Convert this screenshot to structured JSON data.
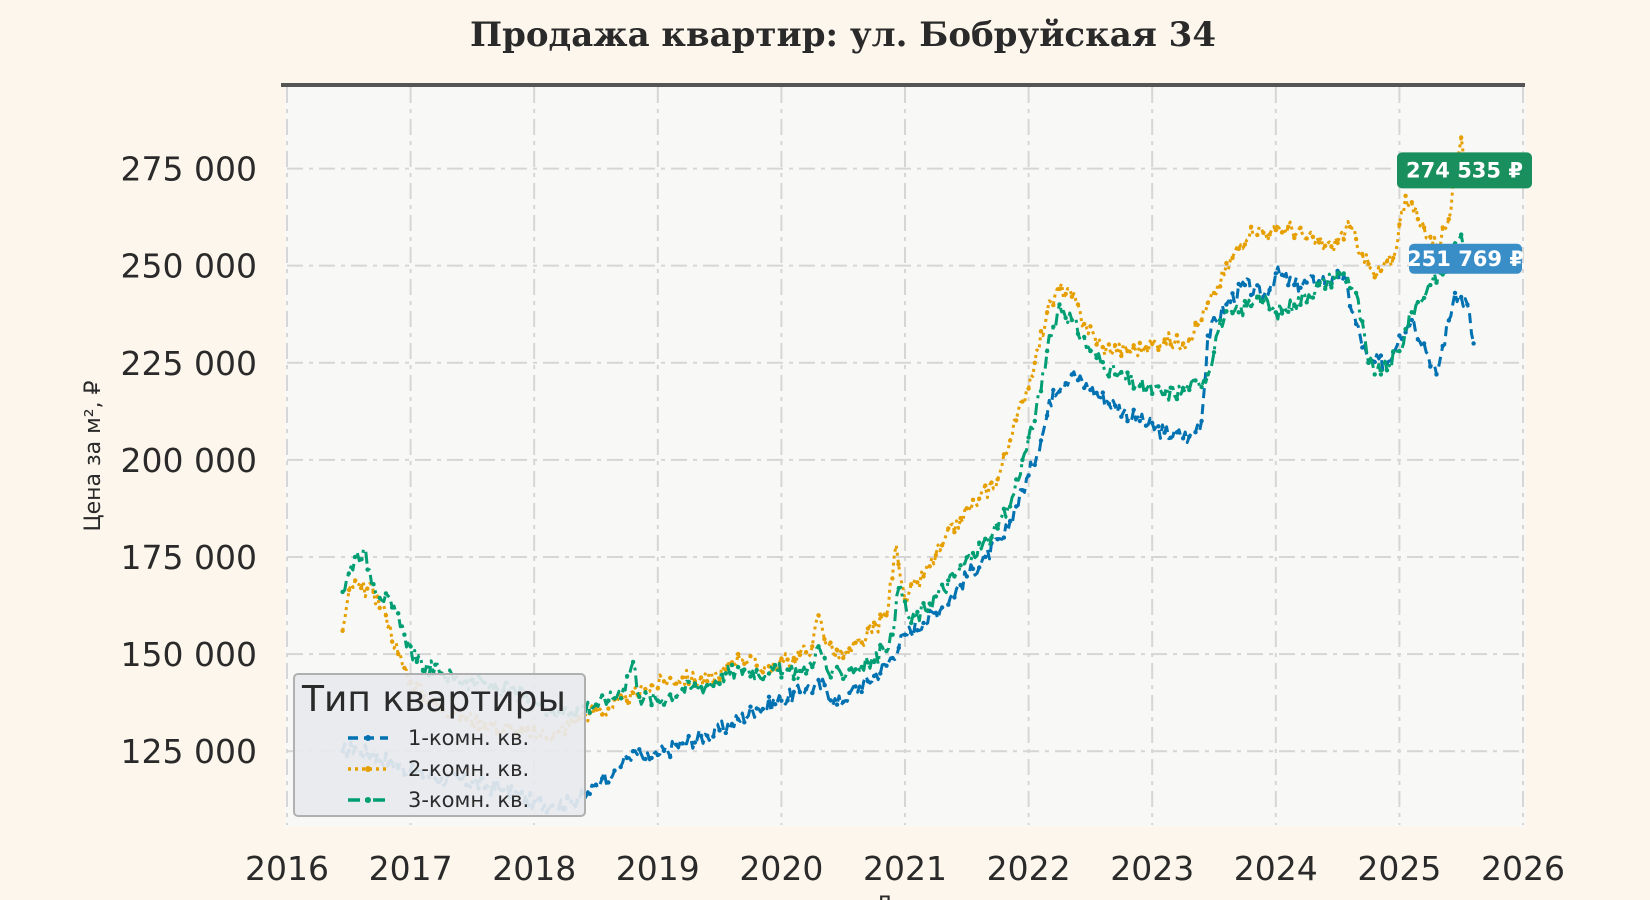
{
  "chart_data": {
    "type": "line",
    "title": "Продажа квартир: ул. Бобруйская 34",
    "xlabel": "Д",
    "ylabel": "Цена за м², ₽",
    "xlim": [
      2016,
      2026
    ],
    "ylim": [
      106000,
      296000
    ],
    "x_ticks": [
      "2016",
      "2017",
      "2018",
      "2019",
      "2020",
      "2021",
      "2022",
      "2023",
      "2024",
      "2025",
      "2026"
    ],
    "y_ticks": [
      "125 000",
      "150 000",
      "175 000",
      "200 000",
      "225 000",
      "250 000",
      "275 000"
    ],
    "grid": true,
    "legend": {
      "title": "Тип квартиры",
      "position": "bottom-left"
    },
    "series": [
      {
        "name": "1-комн. кв.",
        "color": "#0072b2",
        "style": "dashed",
        "points": [
          [
            2016.45,
            125000
          ],
          [
            2016.55,
            126000
          ],
          [
            2016.7,
            124000
          ],
          [
            2016.85,
            122000
          ],
          [
            2017.0,
            120000
          ],
          [
            2017.25,
            118000
          ],
          [
            2017.5,
            117000
          ],
          [
            2017.75,
            115000
          ],
          [
            2018.0,
            112000
          ],
          [
            2018.15,
            111000
          ],
          [
            2018.3,
            112000
          ],
          [
            2018.45,
            114000
          ],
          [
            2018.55,
            118000
          ],
          [
            2018.65,
            120000
          ],
          [
            2018.8,
            125000
          ],
          [
            2018.9,
            123000
          ],
          [
            2019.0,
            124000
          ],
          [
            2019.2,
            127000
          ],
          [
            2019.4,
            129000
          ],
          [
            2019.6,
            132000
          ],
          [
            2019.8,
            136000
          ],
          [
            2020.0,
            138000
          ],
          [
            2020.2,
            141000
          ],
          [
            2020.35,
            142000
          ],
          [
            2020.45,
            137000
          ],
          [
            2020.55,
            140000
          ],
          [
            2020.7,
            143000
          ],
          [
            2020.85,
            147000
          ],
          [
            2021.0,
            155000
          ],
          [
            2021.15,
            158000
          ],
          [
            2021.3,
            162000
          ],
          [
            2021.5,
            170000
          ],
          [
            2021.65,
            175000
          ],
          [
            2021.8,
            180000
          ],
          [
            2021.9,
            188000
          ],
          [
            2022.0,
            196000
          ],
          [
            2022.1,
            205000
          ],
          [
            2022.2,
            218000
          ],
          [
            2022.35,
            222000
          ],
          [
            2022.5,
            218000
          ],
          [
            2022.7,
            214000
          ],
          [
            2022.9,
            210000
          ],
          [
            2023.1,
            207000
          ],
          [
            2023.3,
            206000
          ],
          [
            2023.4,
            210000
          ],
          [
            2023.45,
            232000
          ],
          [
            2023.6,
            240000
          ],
          [
            2023.75,
            245000
          ],
          [
            2023.9,
            242000
          ],
          [
            2024.0,
            248000
          ],
          [
            2024.15,
            245000
          ],
          [
            2024.35,
            246000
          ],
          [
            2024.55,
            247000
          ],
          [
            2024.65,
            235000
          ],
          [
            2024.75,
            225000
          ],
          [
            2024.9,
            225000
          ],
          [
            2025.0,
            232000
          ],
          [
            2025.1,
            236000
          ],
          [
            2025.2,
            230000
          ],
          [
            2025.3,
            222000
          ],
          [
            2025.45,
            243000
          ],
          [
            2025.55,
            240000
          ],
          [
            2025.6,
            230000
          ]
        ]
      },
      {
        "name": "2-комн. кв.",
        "color": "#e69f00",
        "style": "dotted",
        "points": [
          [
            2016.45,
            156000
          ],
          [
            2016.52,
            168000
          ],
          [
            2016.6,
            167000
          ],
          [
            2016.7,
            166000
          ],
          [
            2016.8,
            160000
          ],
          [
            2016.9,
            150000
          ],
          [
            2017.0,
            143000
          ],
          [
            2017.15,
            138000
          ],
          [
            2017.35,
            135000
          ],
          [
            2017.6,
            132000
          ],
          [
            2017.85,
            130000
          ],
          [
            2018.05,
            129000
          ],
          [
            2018.2,
            130000
          ],
          [
            2018.35,
            133000
          ],
          [
            2018.45,
            135000
          ],
          [
            2018.6,
            136000
          ],
          [
            2018.75,
            138000
          ],
          [
            2018.9,
            141000
          ],
          [
            2019.05,
            143000
          ],
          [
            2019.2,
            144000
          ],
          [
            2019.4,
            143000
          ],
          [
            2019.55,
            146000
          ],
          [
            2019.65,
            150000
          ],
          [
            2019.8,
            147000
          ],
          [
            2019.95,
            147000
          ],
          [
            2020.1,
            149000
          ],
          [
            2020.25,
            152000
          ],
          [
            2020.3,
            160000
          ],
          [
            2020.38,
            152000
          ],
          [
            2020.5,
            149000
          ],
          [
            2020.65,
            153000
          ],
          [
            2020.85,
            160000
          ],
          [
            2020.93,
            178000
          ],
          [
            2021.0,
            164000
          ],
          [
            2021.15,
            170000
          ],
          [
            2021.3,
            178000
          ],
          [
            2021.45,
            185000
          ],
          [
            2021.6,
            190000
          ],
          [
            2021.75,
            195000
          ],
          [
            2021.85,
            205000
          ],
          [
            2021.95,
            215000
          ],
          [
            2022.05,
            225000
          ],
          [
            2022.15,
            238000
          ],
          [
            2022.25,
            244000
          ],
          [
            2022.35,
            242000
          ],
          [
            2022.45,
            235000
          ],
          [
            2022.6,
            229000
          ],
          [
            2022.8,
            228000
          ],
          [
            2022.95,
            229000
          ],
          [
            2023.1,
            231000
          ],
          [
            2023.25,
            230000
          ],
          [
            2023.4,
            236000
          ],
          [
            2023.5,
            243000
          ],
          [
            2023.65,
            252000
          ],
          [
            2023.8,
            260000
          ],
          [
            2023.95,
            258000
          ],
          [
            2024.1,
            260000
          ],
          [
            2024.25,
            257000
          ],
          [
            2024.45,
            255000
          ],
          [
            2024.6,
            260000
          ],
          [
            2024.7,
            253000
          ],
          [
            2024.8,
            247000
          ],
          [
            2024.95,
            252000
          ],
          [
            2025.05,
            268000
          ],
          [
            2025.15,
            262000
          ],
          [
            2025.3,
            255000
          ],
          [
            2025.4,
            262000
          ],
          [
            2025.5,
            283000
          ],
          [
            2025.55,
            274535
          ]
        ]
      },
      {
        "name": "3-комн. кв.",
        "color": "#009e73",
        "style": "dashdot",
        "points": [
          [
            2016.45,
            166000
          ],
          [
            2016.55,
            175000
          ],
          [
            2016.62,
            177000
          ],
          [
            2016.7,
            168000
          ],
          [
            2016.85,
            162000
          ],
          [
            2016.95,
            155000
          ],
          [
            2017.05,
            148000
          ],
          [
            2017.25,
            145000
          ],
          [
            2017.45,
            143000
          ],
          [
            2017.65,
            142000
          ],
          [
            2017.85,
            140000
          ],
          [
            2018.05,
            137000
          ],
          [
            2018.2,
            135000
          ],
          [
            2018.35,
            136000
          ],
          [
            2018.5,
            137000
          ],
          [
            2018.6,
            138000
          ],
          [
            2018.72,
            141000
          ],
          [
            2018.8,
            148000
          ],
          [
            2018.85,
            139000
          ],
          [
            2019.0,
            138000
          ],
          [
            2019.2,
            141000
          ],
          [
            2019.4,
            142000
          ],
          [
            2019.55,
            145000
          ],
          [
            2019.7,
            146000
          ],
          [
            2019.9,
            145000
          ],
          [
            2020.05,
            146000
          ],
          [
            2020.2,
            145000
          ],
          [
            2020.3,
            152000
          ],
          [
            2020.4,
            144000
          ],
          [
            2020.55,
            146000
          ],
          [
            2020.75,
            148000
          ],
          [
            2020.9,
            155000
          ],
          [
            2020.95,
            167000
          ],
          [
            2021.05,
            158000
          ],
          [
            2021.2,
            163000
          ],
          [
            2021.4,
            170000
          ],
          [
            2021.55,
            176000
          ],
          [
            2021.7,
            180000
          ],
          [
            2021.85,
            188000
          ],
          [
            2021.95,
            200000
          ],
          [
            2022.05,
            210000
          ],
          [
            2022.15,
            228000
          ],
          [
            2022.25,
            240000
          ],
          [
            2022.35,
            236000
          ],
          [
            2022.5,
            228000
          ],
          [
            2022.7,
            222000
          ],
          [
            2022.9,
            219000
          ],
          [
            2023.1,
            217000
          ],
          [
            2023.3,
            218000
          ],
          [
            2023.45,
            222000
          ],
          [
            2023.55,
            236000
          ],
          [
            2023.7,
            238000
          ],
          [
            2023.85,
            242000
          ],
          [
            2024.0,
            238000
          ],
          [
            2024.15,
            240000
          ],
          [
            2024.35,
            245000
          ],
          [
            2024.55,
            248000
          ],
          [
            2024.65,
            243000
          ],
          [
            2024.75,
            225000
          ],
          [
            2024.85,
            222000
          ],
          [
            2025.0,
            228000
          ],
          [
            2025.1,
            238000
          ],
          [
            2025.25,
            245000
          ],
          [
            2025.4,
            250000
          ],
          [
            2025.5,
            258000
          ],
          [
            2025.55,
            251769
          ]
        ]
      }
    ],
    "end_labels": [
      {
        "text": "274 535 ₽",
        "value": 274535,
        "color": "#1a8f5e"
      },
      {
        "text": "251 769 ₽",
        "value": 251769,
        "color": "#3a8ec8"
      }
    ]
  }
}
